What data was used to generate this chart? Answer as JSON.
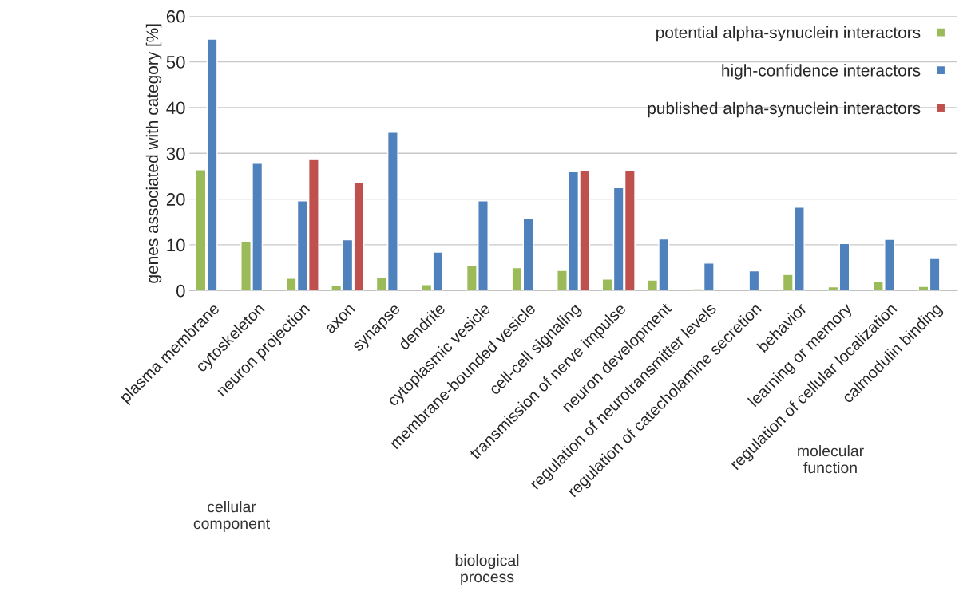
{
  "chart_data": {
    "type": "bar",
    "ylabel": "genes associated with category [%]",
    "categories": [
      "plasma membrane",
      "cytoskeleton",
      "neuron projection",
      "axon",
      "synapse",
      "dendrite",
      "cytoplasmic vesicle",
      "membrane-bounded vesicle",
      "cell-cell signaling",
      "transmission of nerve impulse",
      "neuron development",
      "regulation of neurotransmitter levels",
      "regulation of catecholamine secretion",
      "behavior",
      "learning or memory",
      "regulation of cellular localization",
      "calmodulin binding"
    ],
    "series": [
      {
        "name": "potential alpha-synuclein interactors",
        "color": "#9bbb59",
        "values": [
          26.4,
          10.8,
          2.7,
          1.2,
          2.8,
          1.3,
          5.5,
          5.0,
          4.4,
          2.5,
          2.3,
          0.4,
          null,
          3.5,
          0.8,
          2.0,
          0.9
        ]
      },
      {
        "name": "high-confidence interactors",
        "color": "#4f81bd",
        "values": [
          55.0,
          28.0,
          19.6,
          11.1,
          34.6,
          8.4,
          19.6,
          15.8,
          26.0,
          22.5,
          11.3,
          6.0,
          4.3,
          18.2,
          10.3,
          11.2,
          7.0
        ]
      },
      {
        "name": "published alpha-synuclein interactors",
        "color": "#c0504d",
        "values": [
          null,
          null,
          28.8,
          23.6,
          null,
          null,
          null,
          null,
          26.3,
          26.3,
          null,
          null,
          null,
          null,
          null,
          null,
          null
        ]
      }
    ],
    "ylim": [
      0,
      60
    ],
    "yticks": [
      0,
      10,
      20,
      30,
      40,
      50,
      60
    ],
    "grid": "y",
    "legend": "top right",
    "annotations": [
      "cellular component",
      "biological process",
      "molecular function"
    ]
  }
}
